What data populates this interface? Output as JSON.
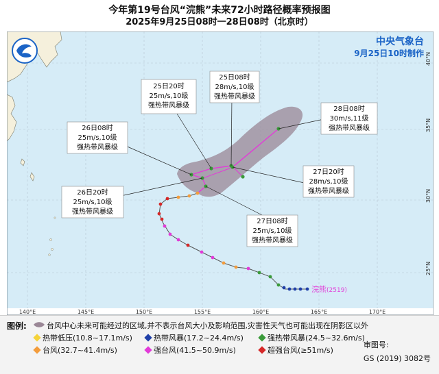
{
  "title": "今年第19号台风“浣熊”未来72小时路径概率预报图",
  "subtitle": "2025年9月25日08时一28日08时（北京时）",
  "agency": {
    "name": "中央气象台",
    "issued": "9月25日10时制作"
  },
  "typhoon": {
    "name": "浣熊",
    "code": "(2519)"
  },
  "axes": {
    "lon_labels": [
      "140°E",
      "145°E",
      "150°E",
      "155°E",
      "160°E",
      "165°E",
      "170°E"
    ],
    "lat_labels": [
      "40°N",
      "35°N",
      "30°N",
      "25°N"
    ]
  },
  "forecast_points": [
    {
      "time": "25日20时",
      "speed": "25m/s,10级",
      "grade": "强热带风暴级"
    },
    {
      "time": "25日08时",
      "speed": "28m/s,10级",
      "grade": "强热带风暴级"
    },
    {
      "time": "28日08时",
      "speed": "30m/s,11级",
      "grade": "强热带风暴级"
    },
    {
      "time": "26日08时",
      "speed": "25m/s,10级",
      "grade": "强热带风暴级"
    },
    {
      "time": "27日20时",
      "speed": "28m/s,10级",
      "grade": "强热带风暴级"
    },
    {
      "time": "26日20时",
      "speed": "25m/s,10级",
      "grade": "强热带风暴级"
    },
    {
      "time": "27日08时",
      "speed": "25m/s,10级",
      "grade": "强热带风暴级"
    }
  ],
  "legend": {
    "heading": "图例:",
    "cone": "台风中心未来可能经过的区域,并不表示台风大小及影响范围,灾害性天气也可能出现在阴影区以外",
    "items": [
      {
        "label": "热带低压(10.8~17.1m/s)",
        "color": "#f5d33a"
      },
      {
        "label": "热带风暴(17.2~24.4m/s)",
        "color": "#1f3fa8"
      },
      {
        "label": "强热带风暴(24.5~32.6m/s)",
        "color": "#3a9a3a"
      },
      {
        "label": "台风(32.7~41.4m/s)",
        "color": "#f39c3c"
      },
      {
        "label": "强台风(41.5~50.9m/s)",
        "color": "#e23bd8"
      },
      {
        "label": "超强台风(≥51m/s)",
        "color": "#d62828"
      }
    ]
  },
  "approval": {
    "label": "审图号:",
    "code": "GS (2019) 3082号"
  },
  "colors": {
    "sea": "#d6ecf7",
    "land": "#f5f0dc",
    "cone": "#9a8796",
    "forecast_track": "#e23bd8"
  }
}
